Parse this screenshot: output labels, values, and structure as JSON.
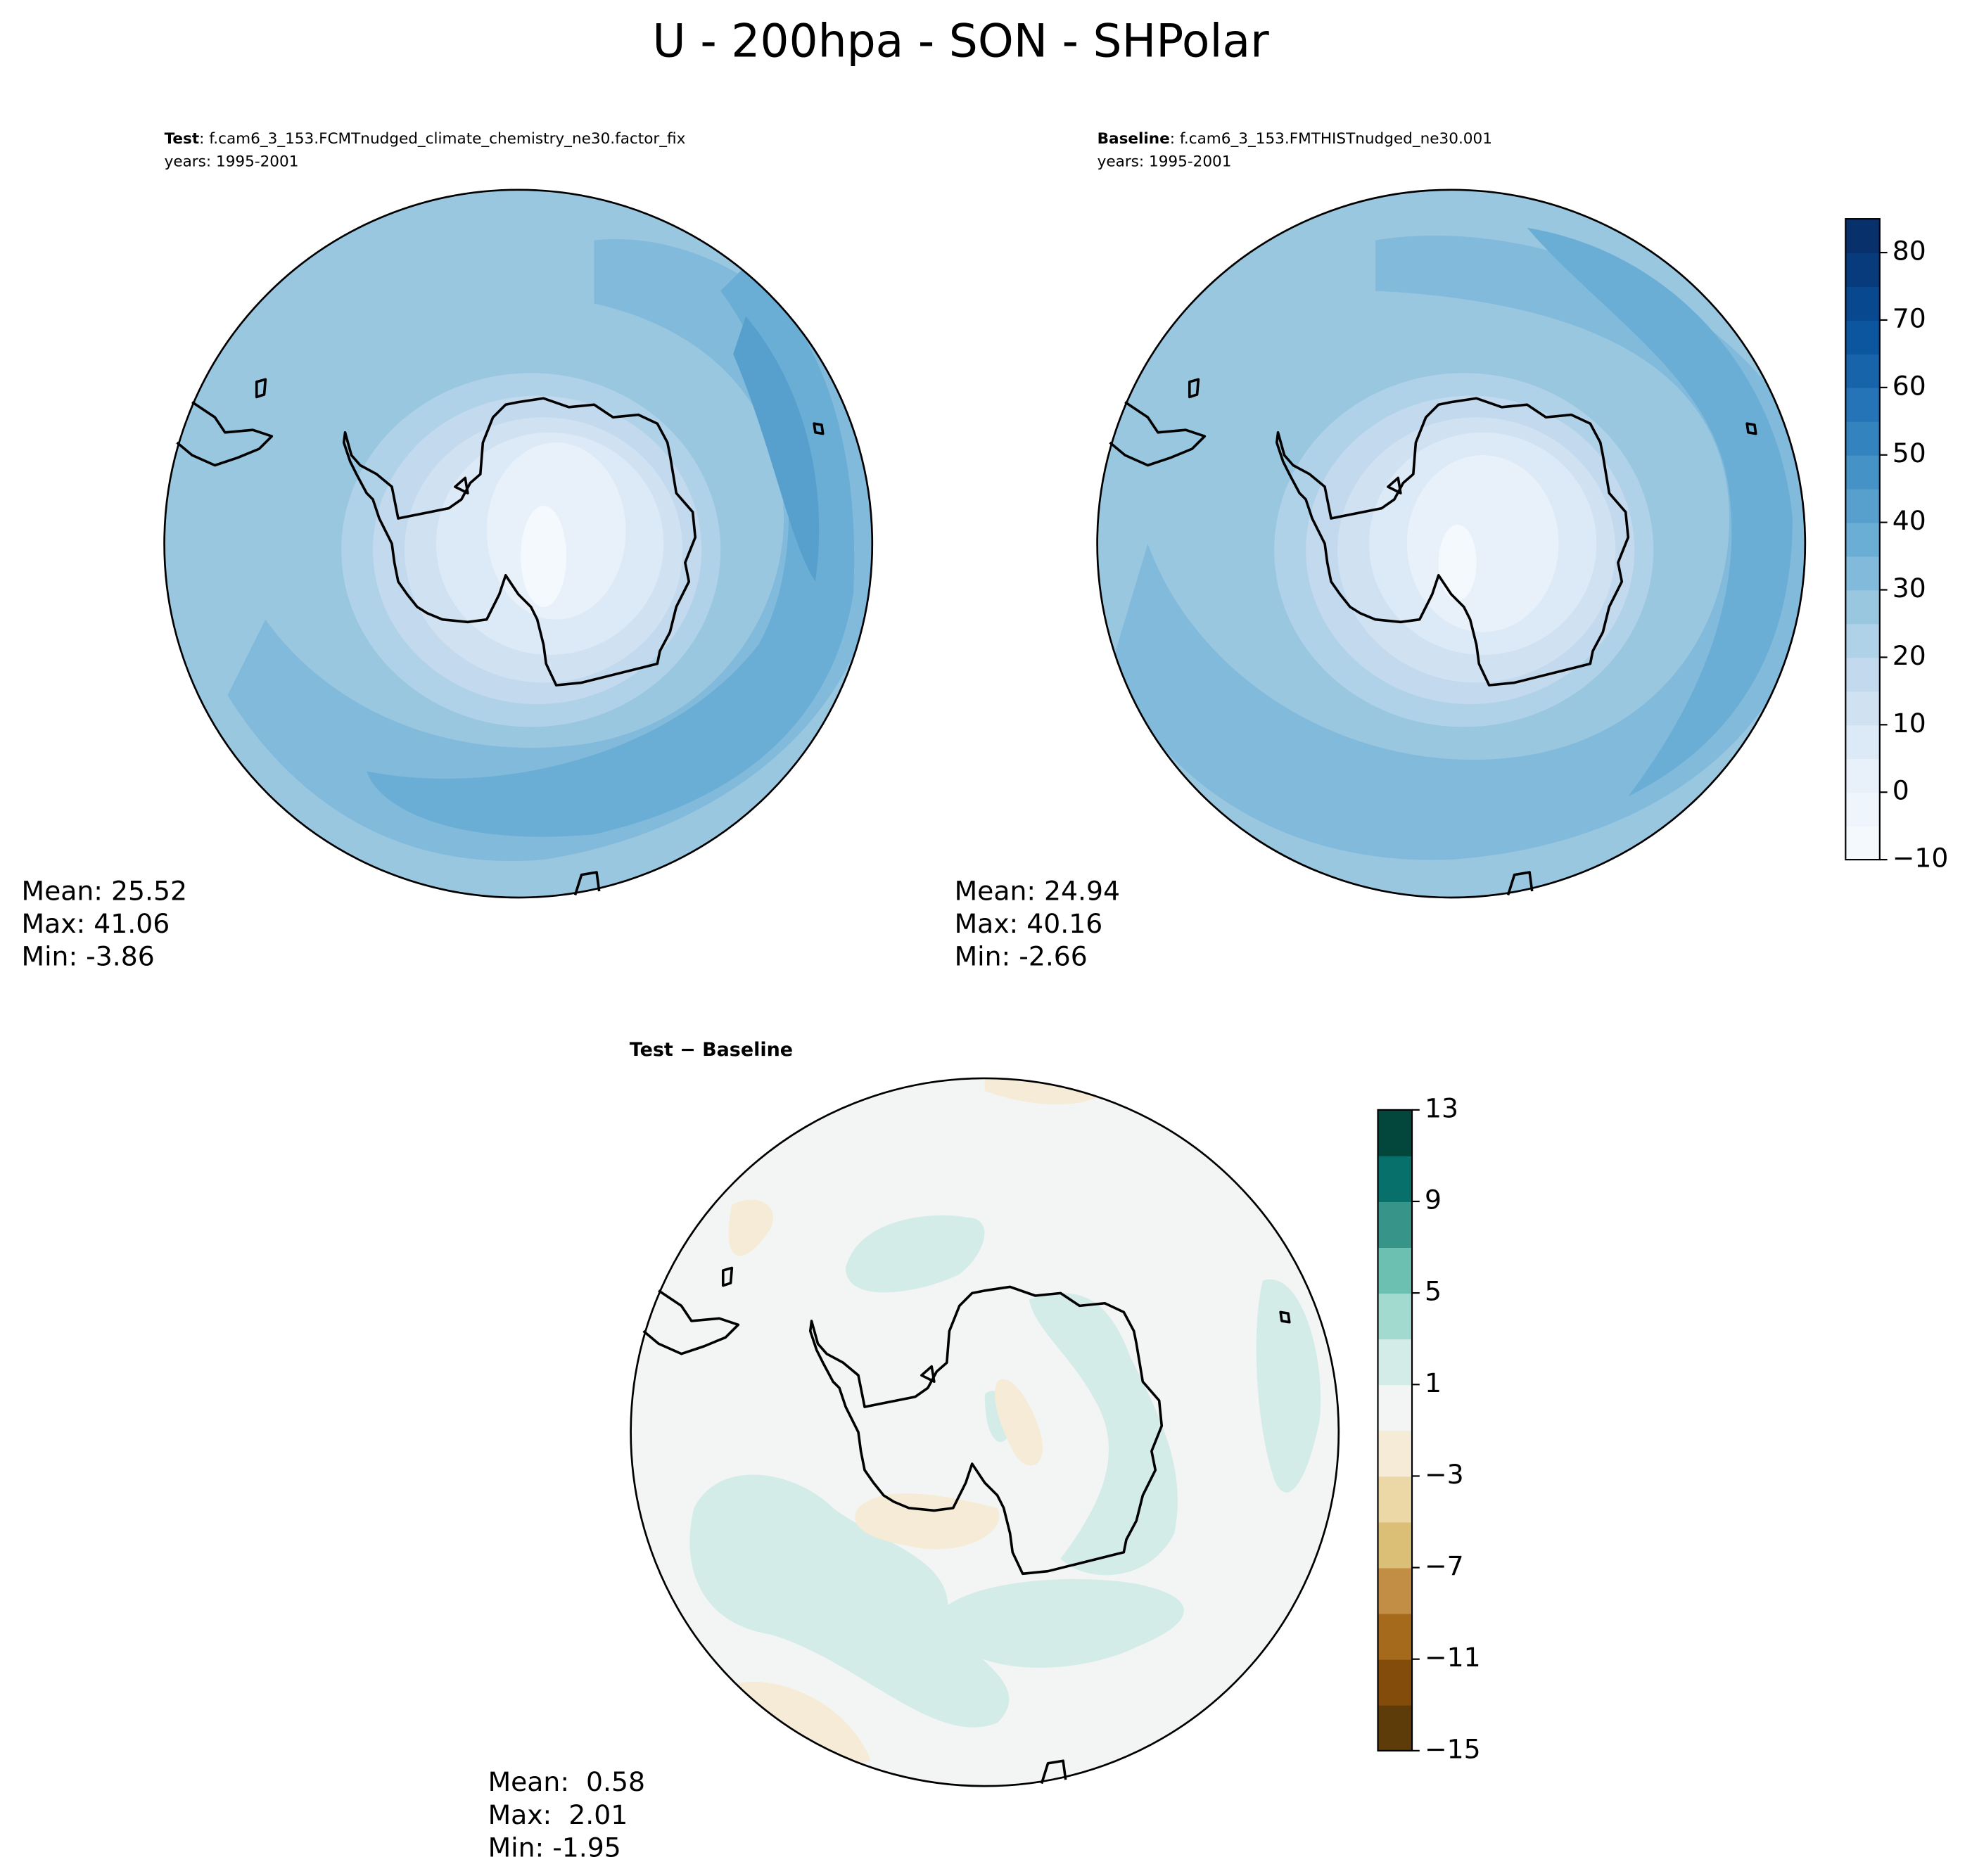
{
  "title": "U - 200hpa - SON - SHPolar",
  "panels": [
    {
      "label_bold": "Test",
      "label_rest": ": f.cam6_3_153.FCMTnudged_climate_chemistry_ne30.factor_fix",
      "years": "years: 1995-2001",
      "stats": [
        "Mean: 25.52",
        "Max: 41.06",
        "Min: -3.86"
      ]
    },
    {
      "label_bold": "Baseline",
      "label_rest": ": f.cam6_3_153.FMTHISTnudged_ne30.001",
      "years": "years: 1995-2001",
      "stats": [
        "Mean: 24.94",
        "Max: 40.16",
        "Min: -2.66"
      ]
    },
    {
      "label": "Test − Baseline",
      "stats": [
        "Mean:  0.58",
        "Max:  2.01",
        "Min: -1.95"
      ]
    }
  ],
  "colorbars": [
    {
      "lim": [
        -10,
        85
      ],
      "ticks": [
        {
          "value": -10,
          "label": "−10"
        },
        0,
        10,
        20,
        30,
        40,
        50,
        60,
        70,
        80
      ],
      "colors": [
        "#f4f9fe",
        "#eef5fc",
        "#e8f1fa",
        "#dce9f6",
        "#d0e1f2",
        "#c2d9ee",
        "#b0d2e8",
        "#9ac7e0",
        "#82badb",
        "#6aaed6",
        "#57a0ce",
        "#4592c6",
        "#3383be",
        "#2474b7",
        "#1764ab",
        "#0c56a0",
        "#08488e",
        "#083b7c",
        "#08306b"
      ]
    },
    {
      "lim": [
        -15,
        13
      ],
      "ticks": [
        {
          "value": -15,
          "label": "−15"
        },
        {
          "value": -11,
          "label": "−11"
        },
        {
          "value": -7,
          "label": "−7"
        },
        {
          "value": -3,
          "label": "−3"
        },
        1,
        5,
        9,
        13
      ],
      "colors": [
        "#5e3c0a",
        "#844c0a",
        "#a66a1d",
        "#c28e45",
        "#dbbf77",
        "#ecd8a6",
        "#f5ebd6",
        "#f3f5f4",
        "#d4ece8",
        "#a3dad0",
        "#6cc0b2",
        "#379488",
        "#08706a",
        "#02463c"
      ]
    }
  ]
}
